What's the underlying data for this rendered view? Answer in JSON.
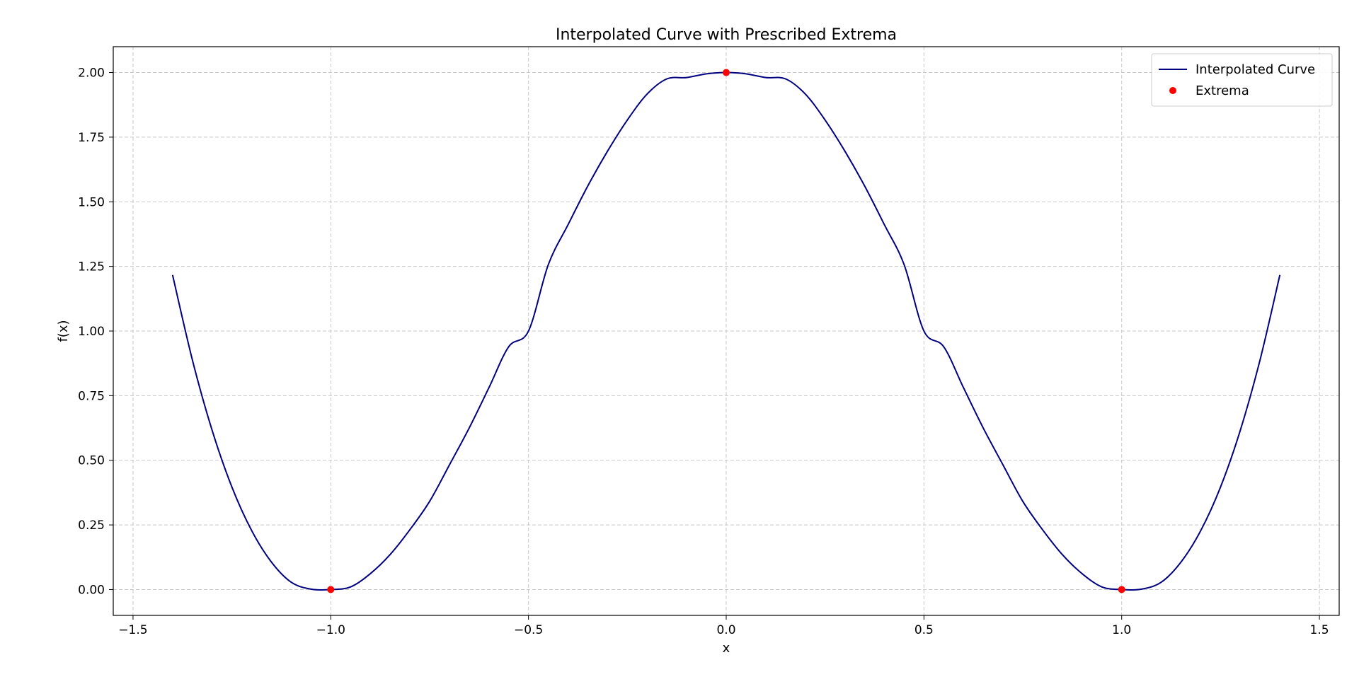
{
  "chart_data": {
    "type": "line",
    "title": "Interpolated Curve with Prescribed Extrema",
    "xlabel": "x",
    "ylabel": "f(x)",
    "xlim": [
      -1.55,
      1.55
    ],
    "ylim": [
      -0.1,
      2.1
    ],
    "xticks": [
      -1.5,
      -1.0,
      -0.5,
      0.0,
      0.5,
      1.0,
      1.5
    ],
    "xtick_labels": [
      "−1.5",
      "−1.0",
      "−0.5",
      "0.0",
      "0.5",
      "1.0",
      "1.5"
    ],
    "yticks": [
      0.0,
      0.25,
      0.5,
      0.75,
      1.0,
      1.25,
      1.5,
      1.75,
      2.0
    ],
    "ytick_labels": [
      "0.00",
      "0.25",
      "0.50",
      "0.75",
      "1.00",
      "1.25",
      "1.50",
      "1.75",
      "2.00"
    ],
    "grid": true,
    "legend_position": "top-right",
    "series": [
      {
        "name": "Interpolated Curve",
        "kind": "line",
        "color": "#000080",
        "x": [
          -1.4,
          -1.35,
          -1.3,
          -1.25,
          -1.2,
          -1.15,
          -1.1,
          -1.05,
          -1.0,
          -0.95,
          -0.9,
          -0.85,
          -0.8,
          -0.75,
          -0.7,
          -0.65,
          -0.6,
          -0.55,
          -0.5,
          -0.45,
          -0.4,
          -0.35,
          -0.3,
          -0.25,
          -0.2,
          -0.15,
          -0.1,
          -0.05,
          0.0,
          0.05,
          0.1,
          0.15,
          0.2,
          0.25,
          0.3,
          0.35,
          0.4,
          0.45,
          0.5,
          0.55,
          0.6,
          0.65,
          0.7,
          0.75,
          0.8,
          0.85,
          0.9,
          0.95,
          1.0,
          1.05,
          1.1,
          1.15,
          1.2,
          1.25,
          1.3,
          1.35,
          1.4
        ],
        "y": [
          1.2168,
          0.8889,
          0.6161,
          0.3967,
          0.2281,
          0.1063,
          0.0283,
          0.0015,
          0.0,
          0.0101,
          0.0613,
          0.1351,
          0.2312,
          0.341,
          0.4819,
          0.6247,
          0.7808,
          0.9393,
          1.0,
          1.2563,
          1.4112,
          1.5612,
          1.6962,
          1.8164,
          1.9168,
          1.9755,
          1.9806,
          1.995,
          2.0,
          1.995,
          1.9806,
          1.9755,
          1.9168,
          1.8164,
          1.6962,
          1.5612,
          1.4112,
          1.2563,
          1.0,
          0.9393,
          0.7808,
          0.6247,
          0.4819,
          0.341,
          0.2312,
          0.1351,
          0.0613,
          0.0101,
          0.0,
          0.0015,
          0.0283,
          0.1063,
          0.2281,
          0.3967,
          0.6161,
          0.8889,
          1.2168
        ]
      },
      {
        "name": "Extrema",
        "kind": "scatter",
        "color": "#ff0000",
        "x": [
          -1.0,
          0.0,
          1.0
        ],
        "y": [
          0.0,
          2.0,
          0.0
        ]
      }
    ]
  }
}
